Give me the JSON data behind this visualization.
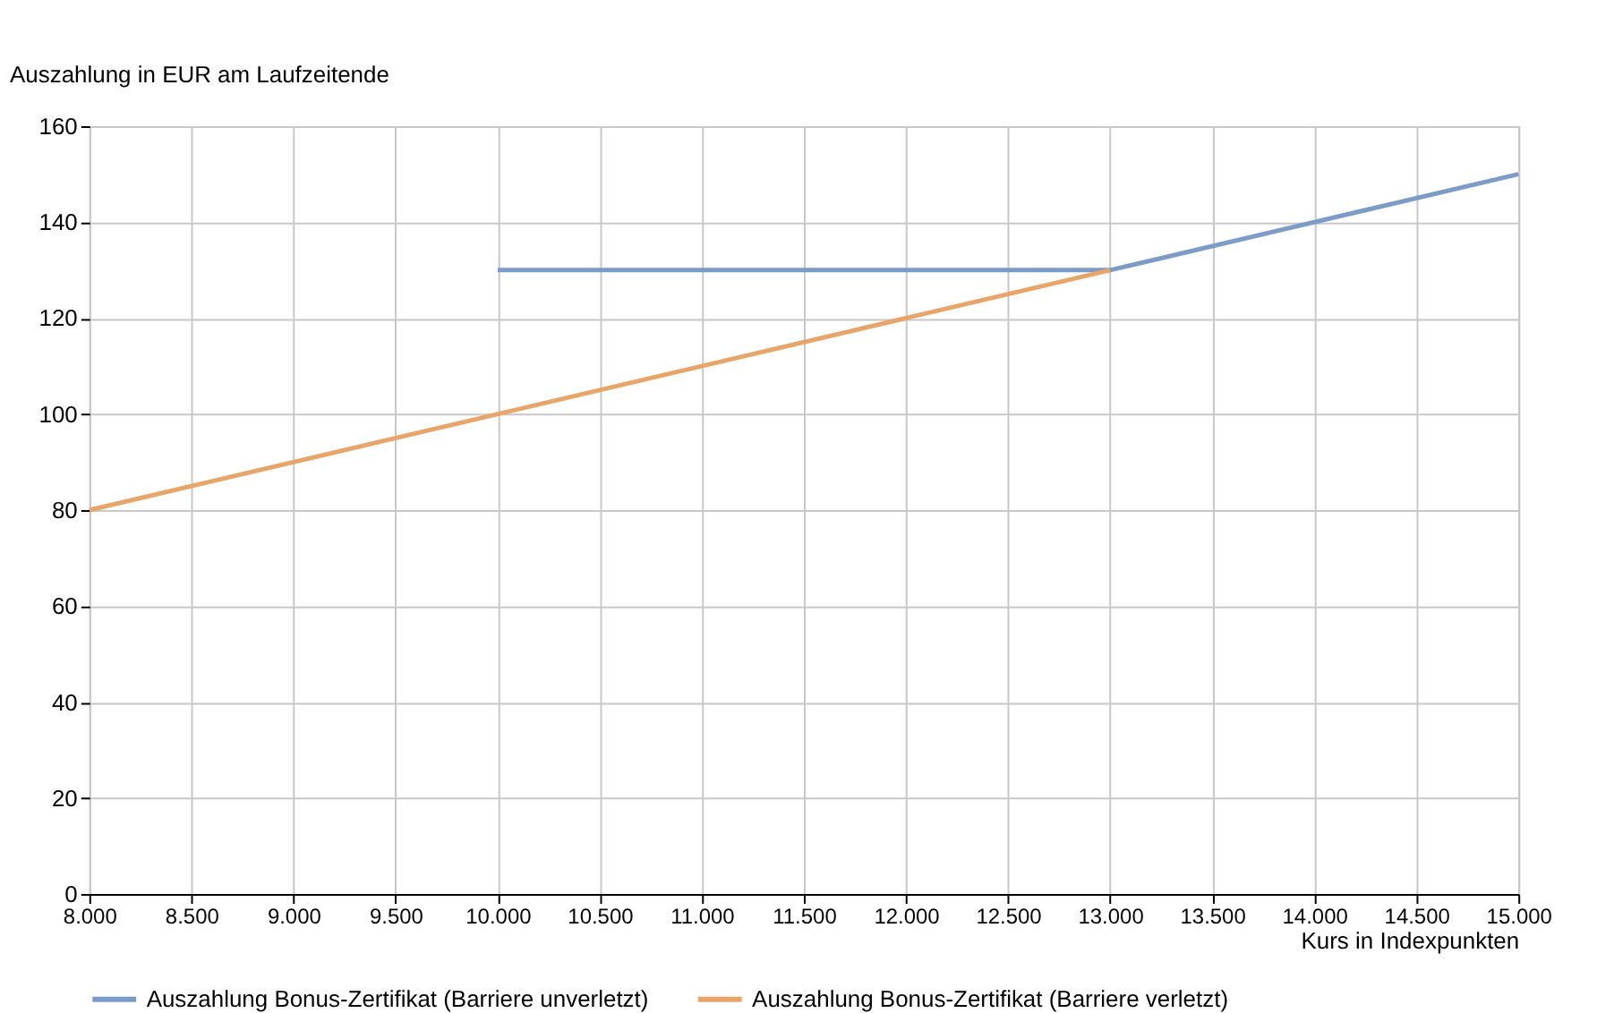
{
  "chart_data": {
    "type": "line",
    "xlabel": "Kurs in Indexpunkten",
    "ylabel": "Auszahlung in EUR am Laufzeitende",
    "series": [
      {
        "name": "Auszahlung Bonus-Zertifikat (Barriere unverletzt)",
        "color": "#7b9bc8",
        "x": [
          10000,
          13000,
          15000
        ],
        "values": [
          130,
          130,
          150
        ]
      },
      {
        "name": "Auszahlung Bonus-Zertifikat (Barriere verletzt)",
        "color": "#e8a56a",
        "x": [
          8000,
          13000
        ],
        "values": [
          80,
          130
        ]
      }
    ],
    "xlim": [
      8000,
      15000
    ],
    "xticks": [
      {
        "value": 8000,
        "label": "8.000"
      },
      {
        "value": 8500,
        "label": "8.500"
      },
      {
        "value": 9000,
        "label": "9.000"
      },
      {
        "value": 9500,
        "label": "9.500"
      },
      {
        "value": 10000,
        "label": "10.000"
      },
      {
        "value": 10500,
        "label": "10.500"
      },
      {
        "value": 11000,
        "label": "11.000"
      },
      {
        "value": 11500,
        "label": "11.500"
      },
      {
        "value": 12000,
        "label": "12.000"
      },
      {
        "value": 12500,
        "label": "12.500"
      },
      {
        "value": 13000,
        "label": "13.000"
      },
      {
        "value": 13500,
        "label": "13.500"
      },
      {
        "value": 14000,
        "label": "14.000"
      },
      {
        "value": 14500,
        "label": "14.500"
      },
      {
        "value": 15000,
        "label": "15.000"
      }
    ],
    "ylim": [
      0,
      160
    ],
    "yticks": [
      0,
      20,
      40,
      60,
      80,
      100,
      120,
      140,
      160
    ],
    "grid": true,
    "legend": "bottom",
    "marker": "none",
    "line_style": "solid"
  }
}
